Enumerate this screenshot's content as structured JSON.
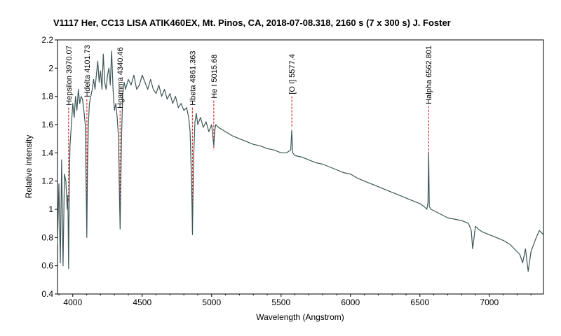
{
  "chart_data": {
    "type": "line",
    "title": "V1117 Her, CC13 LISA ATIK460EX, Mt. Pinos, CA,  2018-07-08.318, 2160 s (7 x 300 s)   J. Foster",
    "xlabel": "Wavelength (Angstrom)",
    "ylabel": "Relative intensity",
    "xlim": [
      3890,
      7390
    ],
    "ylim": [
      0.4,
      2.2
    ],
    "grid": false,
    "colors": {
      "spectrum": "#3e5656",
      "marker": "#cc0000"
    },
    "x_ticks": [
      {
        "value": 4000,
        "label": "4000"
      },
      {
        "value": 4500,
        "label": "4500"
      },
      {
        "value": 5000,
        "label": "5000"
      },
      {
        "value": 5500,
        "label": "5500"
      },
      {
        "value": 6000,
        "label": "6000"
      },
      {
        "value": 6500,
        "label": "6500"
      },
      {
        "value": 7000,
        "label": "7000"
      }
    ],
    "y_ticks": [
      {
        "value": 0.4,
        "label": "0.4"
      },
      {
        "value": 0.6,
        "label": "0.6"
      },
      {
        "value": 0.8,
        "label": "0.8"
      },
      {
        "value": 1.0,
        "label": "1"
      },
      {
        "value": 1.2,
        "label": "1.2"
      },
      {
        "value": 1.4,
        "label": "1.4"
      },
      {
        "value": 1.6,
        "label": "1.6"
      },
      {
        "value": 1.8,
        "label": "1.8"
      },
      {
        "value": 2.0,
        "label": "2"
      },
      {
        "value": 2.2,
        "label": "2.2"
      }
    ],
    "spectral_lines": [
      {
        "label": "Hepsilon 3970.07",
        "wavelength": 3970.07,
        "top": 1.72,
        "bottom": 1.05
      },
      {
        "label": "Hdelta 4101.73",
        "wavelength": 4101.73,
        "top": 1.78,
        "bottom": 0.97
      },
      {
        "label": "Hgamma 4340.46",
        "wavelength": 4340.46,
        "top": 1.7,
        "bottom": 0.88
      },
      {
        "label": "Hbeta 4861.363",
        "wavelength": 4861.363,
        "top": 1.72,
        "bottom": 0.84
      },
      {
        "label": "He I 5015.68",
        "wavelength": 5015.68,
        "top": 1.77,
        "bottom": 1.42
      },
      {
        "label": "[O I] 5577.4",
        "wavelength": 5577.4,
        "top": 1.8,
        "bottom": 1.58
      },
      {
        "label": "Halpha 6562.801",
        "wavelength": 6562.801,
        "top": 1.73,
        "bottom": 1.34
      }
    ],
    "series": [
      {
        "x": [
          3890,
          3900,
          3910,
          3920,
          3930,
          3940,
          3950,
          3960,
          3965,
          3970,
          3975,
          3980,
          3990,
          4000,
          4010,
          4020,
          4030,
          4040,
          4050,
          4060,
          4070,
          4080,
          4090,
          4095,
          4101,
          4106,
          4112,
          4120,
          4130,
          4140,
          4150,
          4160,
          4170,
          4180,
          4190,
          4200,
          4210,
          4220,
          4230,
          4240,
          4250,
          4260,
          4270,
          4280,
          4290,
          4300,
          4310,
          4320,
          4330,
          4336,
          4341,
          4346,
          4352,
          4360,
          4370,
          4380,
          4400,
          4420,
          4440,
          4460,
          4480,
          4500,
          4520,
          4540,
          4560,
          4580,
          4600,
          4620,
          4640,
          4660,
          4680,
          4700,
          4720,
          4740,
          4760,
          4780,
          4800,
          4820,
          4835,
          4845,
          4852,
          4858,
          4862,
          4866,
          4872,
          4880,
          4890,
          4900,
          4920,
          4940,
          4960,
          4980,
          5000,
          5010,
          5016,
          5022,
          5030,
          5050,
          5100,
          5150,
          5200,
          5250,
          5300,
          5350,
          5400,
          5450,
          5500,
          5540,
          5570,
          5577,
          5584,
          5600,
          5650,
          5700,
          5750,
          5800,
          5850,
          5900,
          5950,
          6000,
          6050,
          6100,
          6150,
          6200,
          6250,
          6300,
          6350,
          6400,
          6450,
          6500,
          6530,
          6550,
          6558,
          6563,
          6568,
          6580,
          6620,
          6660,
          6700,
          6750,
          6800,
          6850,
          6870,
          6880,
          6890,
          6900,
          6920,
          6950,
          7000,
          7050,
          7100,
          7150,
          7200,
          7220,
          7240,
          7260,
          7280,
          7300,
          7330,
          7360,
          7390
        ],
        "y": [
          0.75,
          1.18,
          0.62,
          1.35,
          0.6,
          1.25,
          1.2,
          1.0,
          1.1,
          0.58,
          1.15,
          1.45,
          1.6,
          1.75,
          1.65,
          1.8,
          1.7,
          1.85,
          1.75,
          1.8,
          1.78,
          1.7,
          1.6,
          1.25,
          0.8,
          1.3,
          1.6,
          1.75,
          1.8,
          1.85,
          1.92,
          1.85,
          1.95,
          2.05,
          1.9,
          1.98,
          1.85,
          2.1,
          1.9,
          1.85,
          1.95,
          2.0,
          1.88,
          2.12,
          1.85,
          1.7,
          1.75,
          1.65,
          1.5,
          1.1,
          0.86,
          1.2,
          1.55,
          1.82,
          1.9,
          1.85,
          1.92,
          1.88,
          1.95,
          1.85,
          1.88,
          1.95,
          1.9,
          1.85,
          1.92,
          1.85,
          1.82,
          1.88,
          1.8,
          1.85,
          1.78,
          1.82,
          1.75,
          1.8,
          1.72,
          1.75,
          1.7,
          1.72,
          1.65,
          1.55,
          1.3,
          1.05,
          0.82,
          1.1,
          1.4,
          1.62,
          1.68,
          1.6,
          1.65,
          1.58,
          1.62,
          1.55,
          1.6,
          1.5,
          1.45,
          1.55,
          1.6,
          1.58,
          1.55,
          1.52,
          1.5,
          1.48,
          1.46,
          1.45,
          1.43,
          1.42,
          1.4,
          1.4,
          1.42,
          1.56,
          1.4,
          1.38,
          1.37,
          1.35,
          1.33,
          1.32,
          1.3,
          1.28,
          1.26,
          1.25,
          1.22,
          1.2,
          1.18,
          1.16,
          1.14,
          1.12,
          1.1,
          1.08,
          1.06,
          1.04,
          1.02,
          1.0,
          1.05,
          1.4,
          1.02,
          1.0,
          0.98,
          0.96,
          0.94,
          0.93,
          0.92,
          0.9,
          0.85,
          0.72,
          0.8,
          0.88,
          0.86,
          0.84,
          0.82,
          0.8,
          0.78,
          0.75,
          0.7,
          0.68,
          0.62,
          0.72,
          0.56,
          0.7,
          0.78,
          0.85,
          0.82
        ]
      }
    ]
  }
}
